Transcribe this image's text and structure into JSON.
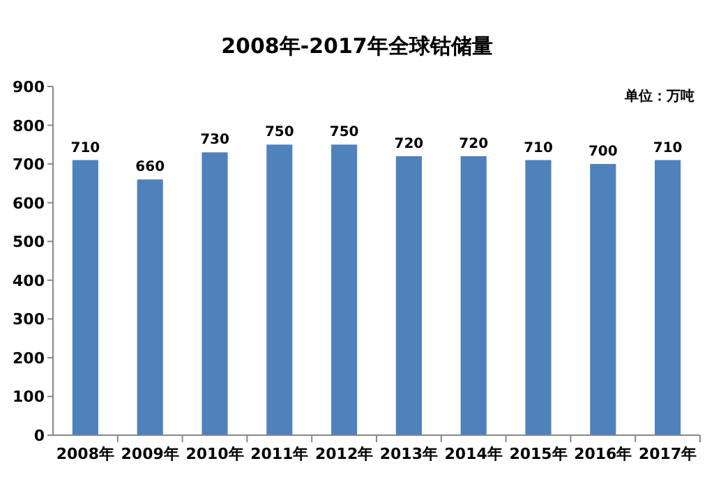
{
  "chart_data": {
    "type": "bar",
    "title": "2008年-2017年全球钴储量",
    "categories": [
      "2008年",
      "2009年",
      "2010年",
      "2011年",
      "2012年",
      "2013年",
      "2014年",
      "2015年",
      "2016年",
      "2017年"
    ],
    "values": [
      710,
      660,
      730,
      750,
      750,
      720,
      720,
      710,
      700,
      710
    ],
    "color": "#4f81bd",
    "ylim": [
      0,
      900
    ],
    "yticks": [
      0,
      100,
      200,
      300,
      400,
      500,
      600,
      700,
      800,
      900
    ],
    "data_labels": true,
    "annotations": [
      "单位：万吨"
    ]
  }
}
